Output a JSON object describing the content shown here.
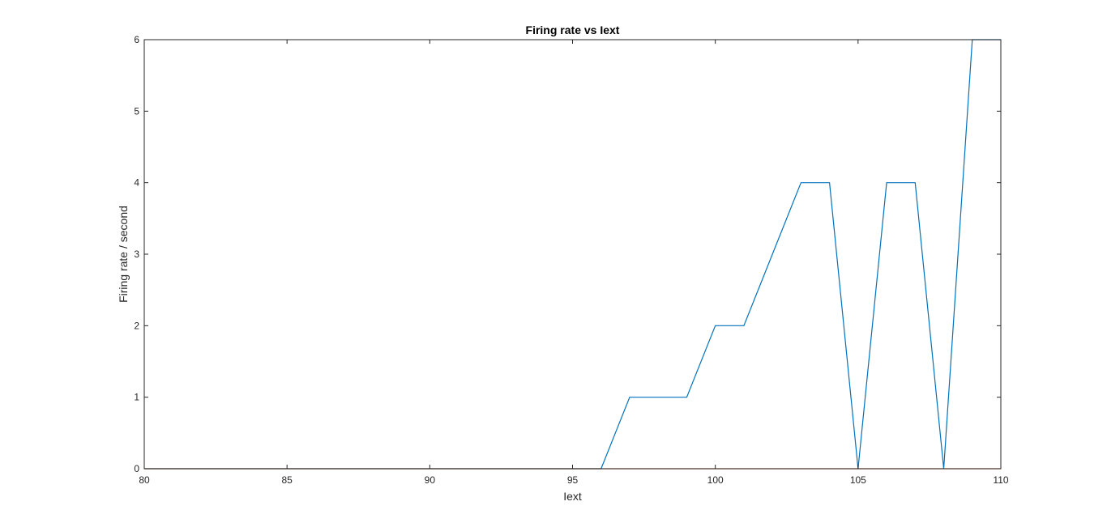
{
  "chart_data": {
    "type": "line",
    "title": "Firing rate vs Iext",
    "xlabel": "Iext",
    "ylabel": "Firing rate / second",
    "xlim": [
      80,
      110
    ],
    "ylim": [
      0,
      6
    ],
    "xticks": [
      80,
      85,
      90,
      95,
      100,
      105,
      110
    ],
    "yticks": [
      0,
      1,
      2,
      3,
      4,
      5,
      6
    ],
    "grid": false,
    "legend": "none",
    "series": [
      {
        "color": "#0072BD",
        "x": [
          80,
          81,
          82,
          83,
          84,
          85,
          86,
          87,
          88,
          89,
          90,
          91,
          92,
          93,
          94,
          95,
          96,
          97,
          98,
          99,
          100,
          101,
          102,
          103,
          104,
          105,
          106,
          107,
          108,
          109,
          110
        ],
        "y": [
          0,
          0,
          0,
          0,
          0,
          0,
          0,
          0,
          0,
          0,
          0,
          0,
          0,
          0,
          0,
          0,
          0,
          1,
          1,
          1,
          2,
          2,
          3,
          4,
          4,
          0,
          4,
          4,
          0,
          6,
          6
        ]
      },
      {
        "color": "#D95319",
        "x": [
          80,
          110
        ],
        "y": [
          0,
          0
        ]
      }
    ]
  }
}
